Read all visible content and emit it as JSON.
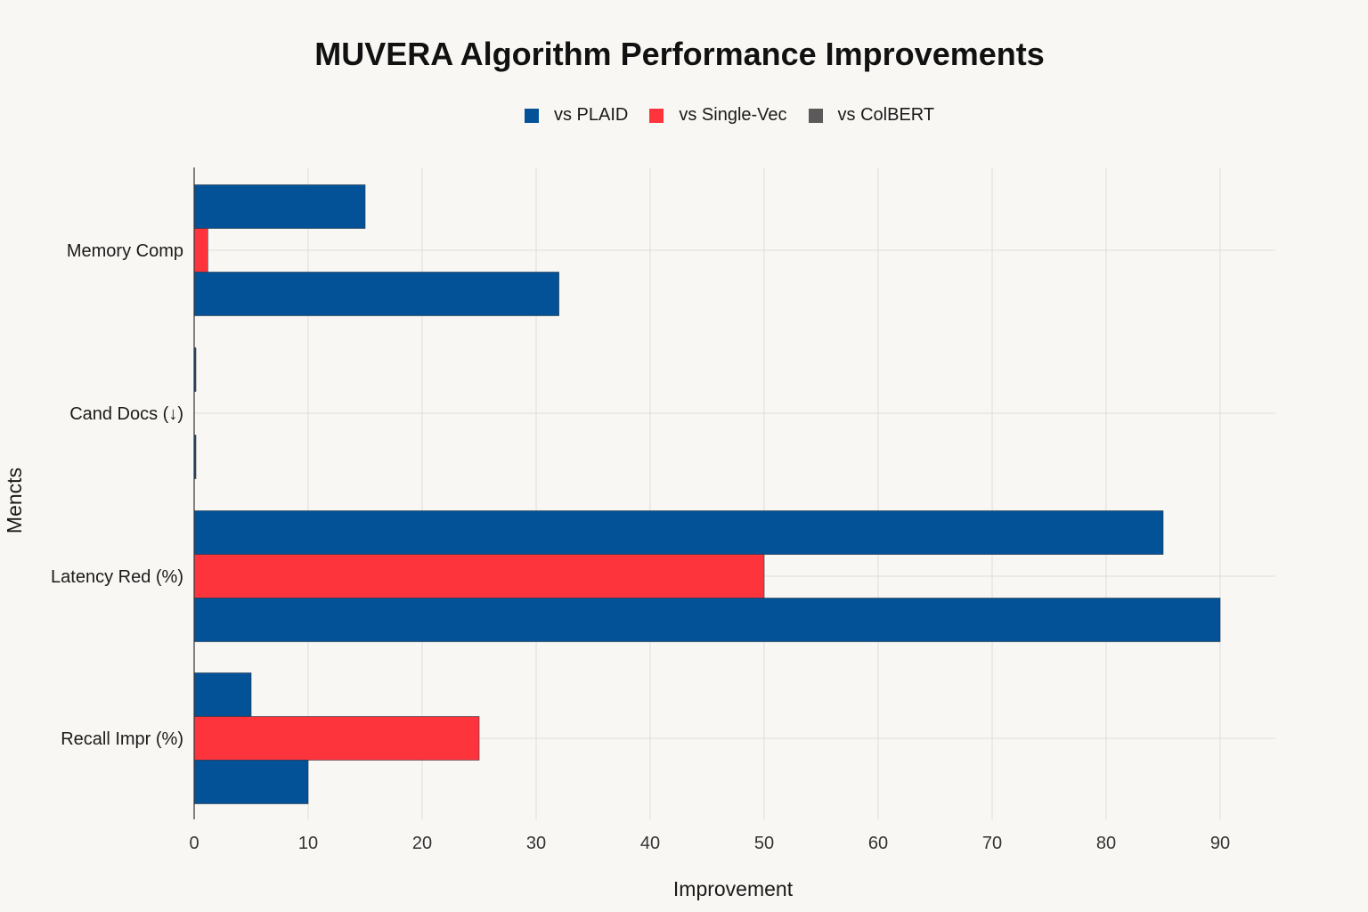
{
  "colors": {
    "background": "#f8f7f3",
    "grid": "#dcdcdc",
    "axis": "#333333",
    "vs_plaid": "#035297",
    "vs_single_vec": "#fe343d",
    "vs_colbert": "#5a5a5a"
  },
  "chart_data": {
    "type": "bar",
    "orientation": "horizontal",
    "title": "MUVERA Algorithm Performance Improvements",
    "xlabel": "Improvement",
    "ylabel": "Mencts",
    "xlim": [
      0,
      95
    ],
    "xticks": [
      0,
      10,
      20,
      30,
      40,
      50,
      60,
      70,
      80,
      90
    ],
    "grid": true,
    "legend_position": "top-center",
    "categories": [
      "Memory Comp",
      "Cand Docs (↓)",
      "Latency Red (%)",
      "Recall Impr (%)"
    ],
    "series": [
      {
        "name": "vs PLAID",
        "color": "#035297",
        "values": [
          15,
          0.1,
          85,
          5
        ]
      },
      {
        "name": "vs Single-Vec",
        "color": "#fe343d",
        "values": [
          1.2,
          0,
          50,
          25
        ]
      },
      {
        "name": "vs ColBERT",
        "color": "#035297",
        "legend_color": "#5a5a5a",
        "values": [
          32,
          0.1,
          90,
          10
        ]
      }
    ]
  }
}
